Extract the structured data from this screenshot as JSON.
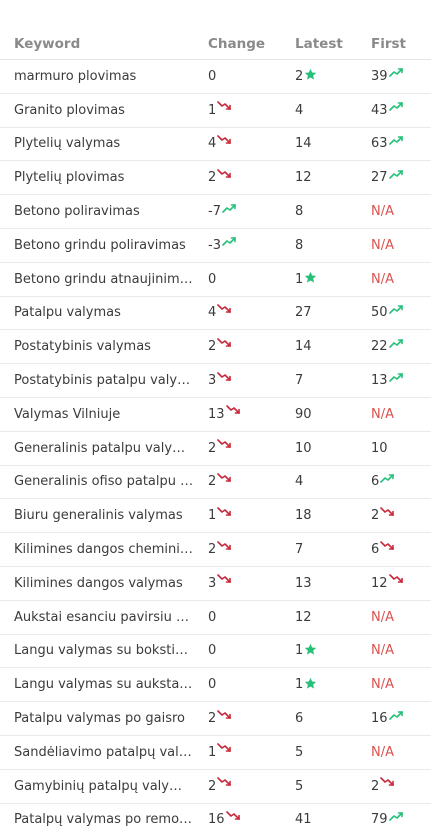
{
  "headers": {
    "keyword": "Keyword",
    "change": "Change",
    "latest": "Latest",
    "first": "First"
  },
  "colors": {
    "up": "#27c07a",
    "down": "#c8283a",
    "na": "#d9534f",
    "star": "#27c07a"
  },
  "rows": [
    {
      "keyword": "marmuro plovimas",
      "change": "0",
      "change_icon": "",
      "latest": "2",
      "latest_icon": "star-icon",
      "first": "39",
      "first_icon": "trend-up-icon"
    },
    {
      "keyword": "Granito plovimas",
      "change": "1",
      "change_icon": "trend-down-icon",
      "latest": "4",
      "latest_icon": "",
      "first": "43",
      "first_icon": "trend-up-icon"
    },
    {
      "keyword": "Plytelių valymas",
      "change": "4",
      "change_icon": "trend-down-icon",
      "latest": "14",
      "latest_icon": "",
      "first": "63",
      "first_icon": "trend-up-icon"
    },
    {
      "keyword": "Plytelių plovimas",
      "change": "2",
      "change_icon": "trend-down-icon",
      "latest": "12",
      "latest_icon": "",
      "first": "27",
      "first_icon": "trend-up-icon"
    },
    {
      "keyword": "Betono poliravimas",
      "change": "-7",
      "change_icon": "trend-up-icon",
      "latest": "8",
      "latest_icon": "",
      "first": "N/A",
      "first_icon": ""
    },
    {
      "keyword": "Betono grindu poliravimas",
      "change": "-3",
      "change_icon": "trend-up-icon",
      "latest": "8",
      "latest_icon": "",
      "first": "N/A",
      "first_icon": ""
    },
    {
      "keyword": "Betono grindu atnaujinimas",
      "change": "0",
      "change_icon": "",
      "latest": "1",
      "latest_icon": "star-icon",
      "first": "N/A",
      "first_icon": ""
    },
    {
      "keyword": "Patalpu valymas",
      "change": "4",
      "change_icon": "trend-down-icon",
      "latest": "27",
      "latest_icon": "",
      "first": "50",
      "first_icon": "trend-up-icon"
    },
    {
      "keyword": "Postatybinis valymas",
      "change": "2",
      "change_icon": "trend-down-icon",
      "latest": "14",
      "latest_icon": "",
      "first": "22",
      "first_icon": "trend-up-icon"
    },
    {
      "keyword": "Postatybinis patalpu valymas",
      "change": "3",
      "change_icon": "trend-down-icon",
      "latest": "7",
      "latest_icon": "",
      "first": "13",
      "first_icon": "trend-up-icon"
    },
    {
      "keyword": "Valymas Vilniuje",
      "change": "13",
      "change_icon": "trend-down-icon",
      "latest": "90",
      "latest_icon": "",
      "first": "N/A",
      "first_icon": ""
    },
    {
      "keyword": "Generalinis patalpu valymas",
      "change": "2",
      "change_icon": "trend-down-icon",
      "latest": "10",
      "latest_icon": "",
      "first": "10",
      "first_icon": ""
    },
    {
      "keyword": "Generalinis ofiso patalpu valymas",
      "change": "2",
      "change_icon": "trend-down-icon",
      "latest": "4",
      "latest_icon": "",
      "first": "6",
      "first_icon": "trend-up-icon"
    },
    {
      "keyword": "Biuru generalinis valymas",
      "change": "1",
      "change_icon": "trend-down-icon",
      "latest": "18",
      "latest_icon": "",
      "first": "2",
      "first_icon": "trend-down-icon"
    },
    {
      "keyword": "Kilimines dangos cheminis valymas",
      "change": "2",
      "change_icon": "trend-down-icon",
      "latest": "7",
      "latest_icon": "",
      "first": "6",
      "first_icon": "trend-down-icon"
    },
    {
      "keyword": "Kilimines dangos valymas",
      "change": "3",
      "change_icon": "trend-down-icon",
      "latest": "13",
      "latest_icon": "",
      "first": "12",
      "first_icon": "trend-down-icon"
    },
    {
      "keyword": "Aukstai esanciu pavirsiu valymas",
      "change": "0",
      "change_icon": "",
      "latest": "12",
      "latest_icon": "",
      "first": "N/A",
      "first_icon": ""
    },
    {
      "keyword": "Langu valymas su bokstiniu keltuvu",
      "change": "0",
      "change_icon": "",
      "latest": "1",
      "latest_icon": "star-icon",
      "first": "N/A",
      "first_icon": ""
    },
    {
      "keyword": "Langu valymas su aukstalipiais",
      "change": "0",
      "change_icon": "",
      "latest": "1",
      "latest_icon": "star-icon",
      "first": "N/A",
      "first_icon": ""
    },
    {
      "keyword": "Patalpu valymas po gaisro",
      "change": "2",
      "change_icon": "trend-down-icon",
      "latest": "6",
      "latest_icon": "",
      "first": "16",
      "first_icon": "trend-up-icon"
    },
    {
      "keyword": "Sandėliavimo patalpų valymas",
      "change": "1",
      "change_icon": "trend-down-icon",
      "latest": "5",
      "latest_icon": "",
      "first": "N/A",
      "first_icon": ""
    },
    {
      "keyword": "Gamybinių patalpų valymas",
      "change": "2",
      "change_icon": "trend-down-icon",
      "latest": "5",
      "latest_icon": "",
      "first": "2",
      "first_icon": "trend-down-icon"
    },
    {
      "keyword": "Patalpų valymas po remonto",
      "change": "16",
      "change_icon": "trend-down-icon",
      "latest": "41",
      "latest_icon": "",
      "first": "79",
      "first_icon": "trend-up-icon"
    }
  ]
}
